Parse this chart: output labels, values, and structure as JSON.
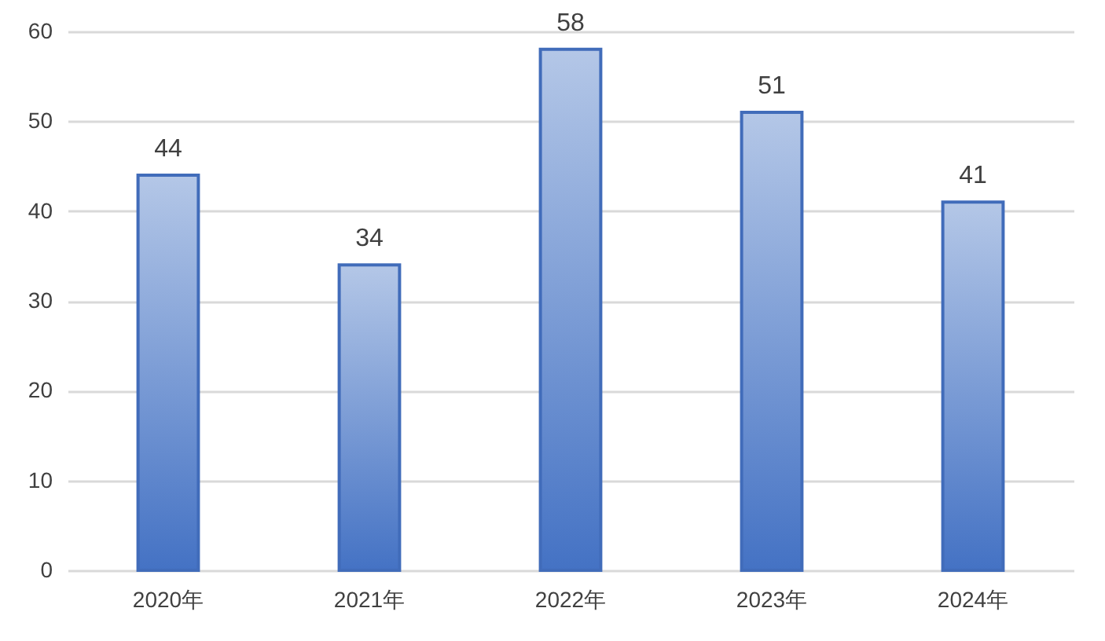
{
  "chart_data": {
    "type": "bar",
    "categories": [
      "2020年",
      "2021年",
      "2022年",
      "2023年",
      "2024年"
    ],
    "values": [
      44,
      34,
      58,
      51,
      41
    ],
    "color": "#4472c4",
    "ylim": [
      0,
      60
    ],
    "yticks": [
      0,
      10,
      20,
      30,
      40,
      50,
      60
    ],
    "grid": "y",
    "data_labels": true
  }
}
